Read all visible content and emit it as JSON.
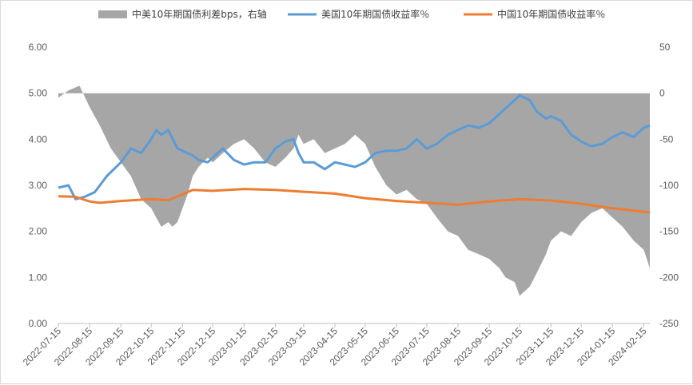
{
  "chart_data": {
    "type": "line",
    "title": "",
    "xlabel": "",
    "ylabel": "",
    "y_left_range": [
      0,
      6
    ],
    "y_right_range": [
      -250,
      50
    ],
    "y_left_ticks": [
      "6.00",
      "5.00",
      "4.00",
      "3.00",
      "2.00",
      "1.00",
      "0.00"
    ],
    "y_right_ticks": [
      "50",
      "0",
      "-50",
      "-100",
      "-150",
      "-200",
      "-250"
    ],
    "x_ticks": [
      "2022-07-15",
      "2022-08-15",
      "2022-09-15",
      "2022-10-15",
      "2022-11-15",
      "2022-12-15",
      "2023-01-15",
      "2023-02-15",
      "2023-03-15",
      "2023-04-15",
      "2023-05-15",
      "2023-06-15",
      "2023-07-15",
      "2023-08-15",
      "2023-09-15",
      "2023-10-15",
      "2023-11-15",
      "2023-12-15",
      "2024-01-15",
      "2024-02-15"
    ],
    "legend_position": "top",
    "grid": false,
    "series": [
      {
        "name": "中美10年期国债利差bps，右轴",
        "type": "area",
        "axis": "right",
        "color": "#a6a6a6",
        "x": [
          "2022-07-15",
          "2022-07-25",
          "2022-08-05",
          "2022-08-15",
          "2022-08-25",
          "2022-09-05",
          "2022-09-15",
          "2022-09-25",
          "2022-10-05",
          "2022-10-15",
          "2022-10-20",
          "2022-10-25",
          "2022-11-01",
          "2022-11-05",
          "2022-11-10",
          "2022-11-15",
          "2022-11-20",
          "2022-11-25",
          "2022-12-01",
          "2022-12-10",
          "2022-12-15",
          "2022-12-25",
          "2023-01-05",
          "2023-01-15",
          "2023-01-25",
          "2023-02-05",
          "2023-02-15",
          "2023-02-25",
          "2023-03-05",
          "2023-03-10",
          "2023-03-15",
          "2023-03-25",
          "2023-04-05",
          "2023-04-15",
          "2023-04-25",
          "2023-05-05",
          "2023-05-15",
          "2023-05-25",
          "2023-06-05",
          "2023-06-15",
          "2023-06-25",
          "2023-07-05",
          "2023-07-15",
          "2023-07-25",
          "2023-08-05",
          "2023-08-15",
          "2023-08-25",
          "2023-09-05",
          "2023-09-15",
          "2023-09-25",
          "2023-10-01",
          "2023-10-10",
          "2023-10-15",
          "2023-10-20",
          "2023-10-25",
          "2023-11-01",
          "2023-11-10",
          "2023-11-15",
          "2023-11-25",
          "2023-12-05",
          "2023-12-15",
          "2023-12-25",
          "2024-01-05",
          "2024-01-15",
          "2024-01-25",
          "2024-02-05",
          "2024-02-15",
          "2024-02-21"
        ],
        "values": [
          -5,
          3,
          8,
          -15,
          -35,
          -60,
          -75,
          -90,
          -115,
          -125,
          -135,
          -145,
          -140,
          -145,
          -140,
          -125,
          -110,
          -90,
          -80,
          -70,
          -75,
          -65,
          -55,
          -50,
          -60,
          -75,
          -80,
          -70,
          -60,
          -45,
          -55,
          -50,
          -65,
          -60,
          -55,
          -45,
          -55,
          -80,
          -100,
          -110,
          -105,
          -115,
          -120,
          -135,
          -150,
          -155,
          -170,
          -175,
          -180,
          -190,
          -200,
          -205,
          -220,
          -215,
          -210,
          -195,
          -175,
          -160,
          -150,
          -155,
          -140,
          -130,
          -125,
          -135,
          -145,
          -160,
          -170,
          -190
        ]
      },
      {
        "name": "美国10年期国债收益率％",
        "type": "line",
        "axis": "left",
        "color": "#5b9bd5",
        "x": [
          "2022-07-15",
          "2022-07-25",
          "2022-08-01",
          "2022-08-10",
          "2022-08-20",
          "2022-09-01",
          "2022-09-15",
          "2022-09-25",
          "2022-10-05",
          "2022-10-15",
          "2022-10-20",
          "2022-10-25",
          "2022-11-01",
          "2022-11-10",
          "2022-11-15",
          "2022-11-25",
          "2022-12-01",
          "2022-12-10",
          "2022-12-15",
          "2022-12-25",
          "2023-01-05",
          "2023-01-15",
          "2023-01-25",
          "2023-02-05",
          "2023-02-15",
          "2023-02-25",
          "2023-03-05",
          "2023-03-10",
          "2023-03-15",
          "2023-03-25",
          "2023-04-05",
          "2023-04-15",
          "2023-04-25",
          "2023-05-05",
          "2023-05-15",
          "2023-05-25",
          "2023-06-05",
          "2023-06-15",
          "2023-06-25",
          "2023-07-05",
          "2023-07-15",
          "2023-07-25",
          "2023-08-05",
          "2023-08-15",
          "2023-08-25",
          "2023-09-05",
          "2023-09-15",
          "2023-09-25",
          "2023-10-05",
          "2023-10-15",
          "2023-10-20",
          "2023-10-25",
          "2023-11-01",
          "2023-11-10",
          "2023-11-15",
          "2023-11-25",
          "2023-12-05",
          "2023-12-15",
          "2023-12-25",
          "2024-01-05",
          "2024-01-15",
          "2024-01-25",
          "2024-02-05",
          "2024-02-15",
          "2024-02-21"
        ],
        "values": [
          2.95,
          3.0,
          2.7,
          2.75,
          2.85,
          3.2,
          3.5,
          3.8,
          3.7,
          4.0,
          4.2,
          4.1,
          4.2,
          3.8,
          3.75,
          3.65,
          3.55,
          3.5,
          3.6,
          3.8,
          3.55,
          3.45,
          3.5,
          3.5,
          3.8,
          3.95,
          4.0,
          3.7,
          3.5,
          3.5,
          3.35,
          3.5,
          3.45,
          3.4,
          3.5,
          3.7,
          3.75,
          3.75,
          3.8,
          4.0,
          3.8,
          3.9,
          4.1,
          4.2,
          4.3,
          4.25,
          4.35,
          4.55,
          4.75,
          4.95,
          4.9,
          4.85,
          4.6,
          4.45,
          4.5,
          4.4,
          4.1,
          3.95,
          3.85,
          3.9,
          4.05,
          4.15,
          4.05,
          4.25,
          4.3
        ]
      },
      {
        "name": "中国10年期国债收益率％",
        "type": "line",
        "axis": "left",
        "color": "#ed7d31",
        "x": [
          "2022-07-15",
          "2022-08-01",
          "2022-08-15",
          "2022-08-25",
          "2022-09-15",
          "2022-10-15",
          "2022-11-01",
          "2022-11-15",
          "2022-11-25",
          "2022-12-15",
          "2023-01-15",
          "2023-02-15",
          "2023-03-15",
          "2023-04-15",
          "2023-05-15",
          "2023-06-15",
          "2023-07-15",
          "2023-08-15",
          "2023-09-15",
          "2023-10-15",
          "2023-11-15",
          "2023-12-15",
          "2024-01-15",
          "2024-02-21"
        ],
        "values": [
          2.76,
          2.75,
          2.65,
          2.62,
          2.66,
          2.7,
          2.68,
          2.8,
          2.9,
          2.88,
          2.92,
          2.9,
          2.86,
          2.82,
          2.72,
          2.66,
          2.62,
          2.58,
          2.65,
          2.7,
          2.67,
          2.6,
          2.5,
          2.41
        ]
      }
    ]
  }
}
